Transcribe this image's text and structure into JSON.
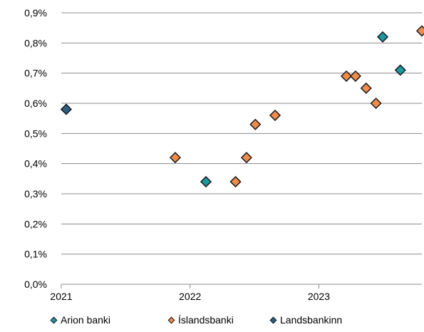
{
  "chart_data": {
    "type": "scatter",
    "title": "",
    "xlabel": "",
    "ylabel": "",
    "x_ticks": [
      "2021",
      "2022",
      "2023"
    ],
    "y_ticks": [
      "0,0%",
      "0,1%",
      "0,2%",
      "0,3%",
      "0,4%",
      "0,5%",
      "0,6%",
      "0,7%",
      "0,8%",
      "0,9%"
    ],
    "ylim": [
      0,
      0.9
    ],
    "xlim": [
      "2021-01-01",
      "2023-10-20"
    ],
    "grid": true,
    "legend_position": "bottom",
    "series": [
      {
        "name": "Arion banki",
        "color": "#1a9aa0",
        "points": [
          {
            "x": "2022-02-15",
            "y": 0.34
          },
          {
            "x": "2023-07-01",
            "y": 0.82
          },
          {
            "x": "2023-08-20",
            "y": 0.71
          }
        ]
      },
      {
        "name": "Íslandsbanki",
        "color": "#ef8c4b",
        "points": [
          {
            "x": "2021-11-20",
            "y": 0.42
          },
          {
            "x": "2022-05-10",
            "y": 0.34
          },
          {
            "x": "2022-06-10",
            "y": 0.42
          },
          {
            "x": "2022-07-05",
            "y": 0.53
          },
          {
            "x": "2022-08-30",
            "y": 0.56
          },
          {
            "x": "2023-03-20",
            "y": 0.69
          },
          {
            "x": "2023-04-15",
            "y": 0.69
          },
          {
            "x": "2023-05-15",
            "y": 0.65
          },
          {
            "x": "2023-06-12",
            "y": 0.6
          },
          {
            "x": "2023-10-20",
            "y": 0.84
          }
        ]
      },
      {
        "name": "Landsbankinn",
        "color": "#2e5f83",
        "points": [
          {
            "x": "2021-01-15",
            "y": 0.58
          }
        ]
      }
    ]
  }
}
